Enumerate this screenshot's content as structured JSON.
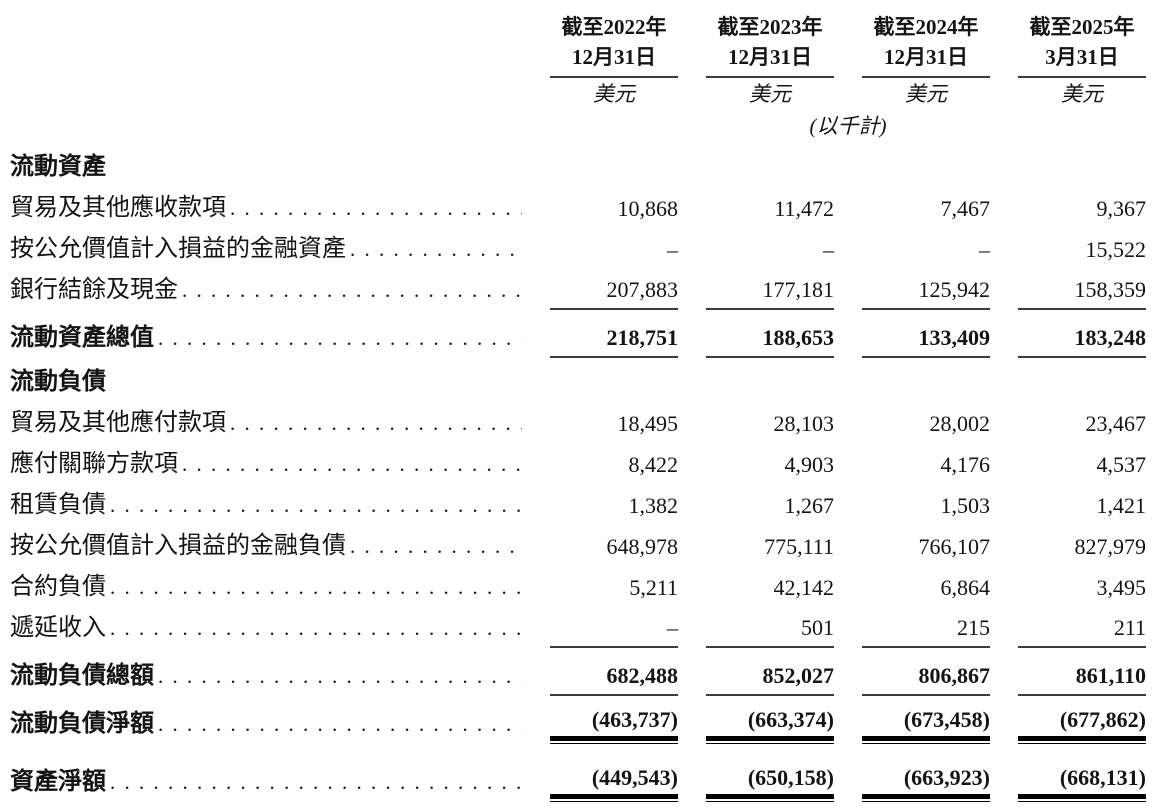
{
  "page": {
    "background_color": "#ffffff",
    "text_color": "#141414",
    "rule_color": "#3d3d3d"
  },
  "table": {
    "unit_note": "(以千計)",
    "columns": [
      {
        "period_line1": "截至2022年",
        "period_line2": "12月31日",
        "currency": "美元"
      },
      {
        "period_line1": "截至2023年",
        "period_line2": "12月31日",
        "currency": "美元"
      },
      {
        "period_line1": "截至2024年",
        "period_line2": "12月31日",
        "currency": "美元"
      },
      {
        "period_line1": "截至2025年",
        "period_line2": "3月31日",
        "currency": "美元"
      }
    ],
    "rows": [
      {
        "type": "section",
        "label": "流動資產",
        "values": [
          "",
          "",
          "",
          ""
        ]
      },
      {
        "type": "data",
        "label": "貿易及其他應收款項",
        "values": [
          "10,868",
          "11,472",
          "7,467",
          "9,367"
        ]
      },
      {
        "type": "data",
        "label": "按公允價值計入損益的金融資產",
        "values": [
          "–",
          "–",
          "–",
          "15,522"
        ]
      },
      {
        "type": "data",
        "label": "銀行結餘及現金",
        "values": [
          "207,883",
          "177,181",
          "125,942",
          "158,359"
        ]
      },
      {
        "type": "total",
        "label": "流動資產總值",
        "values": [
          "218,751",
          "188,653",
          "133,409",
          "183,248"
        ]
      },
      {
        "type": "section",
        "label": "流動負債",
        "values": [
          "",
          "",
          "",
          ""
        ]
      },
      {
        "type": "data",
        "label": "貿易及其他應付款項",
        "values": [
          "18,495",
          "28,103",
          "28,002",
          "23,467"
        ]
      },
      {
        "type": "data",
        "label": "應付關聯方款項",
        "values": [
          "8,422",
          "4,903",
          "4,176",
          "4,537"
        ]
      },
      {
        "type": "data",
        "label": "租賃負債",
        "values": [
          "1,382",
          "1,267",
          "1,503",
          "1,421"
        ]
      },
      {
        "type": "data",
        "label": "按公允價值計入損益的金融負債",
        "values": [
          "648,978",
          "775,111",
          "766,107",
          "827,979"
        ]
      },
      {
        "type": "data",
        "label": "合約負債",
        "values": [
          "5,211",
          "42,142",
          "6,864",
          "3,495"
        ]
      },
      {
        "type": "data",
        "label": "遞延收入",
        "values": [
          "–",
          "501",
          "215",
          "211"
        ]
      },
      {
        "type": "total",
        "label": "流動負債總額",
        "values": [
          "682,488",
          "852,027",
          "806,867",
          "861,110"
        ]
      },
      {
        "type": "total",
        "label": "流動負債淨額",
        "values": [
          "(463,737)",
          "(663,374)",
          "(673,458)",
          "(677,862)"
        ]
      },
      {
        "type": "total",
        "label": "資產淨額",
        "values": [
          "(449,543)",
          "(650,158)",
          "(663,923)",
          "(668,131)"
        ]
      }
    ]
  }
}
